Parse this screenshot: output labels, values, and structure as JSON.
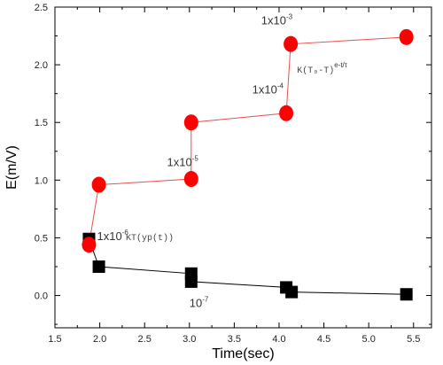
{
  "chart_data": {
    "type": "scatter",
    "xlabel": "Time(sec)",
    "ylabel": "E(m/V)",
    "xlim": [
      1.5,
      5.7
    ],
    "ylim": [
      -0.28,
      2.5
    ],
    "x_ticks": [
      1.5,
      2.0,
      2.5,
      3.0,
      3.5,
      4.0,
      4.5,
      5.0,
      5.5
    ],
    "y_ticks": [
      0.0,
      0.5,
      1.0,
      1.5,
      2.0,
      2.5
    ],
    "x_tick_labels": [
      "1.5",
      "2.0",
      "2.5",
      "3.0",
      "3.5",
      "4.0",
      "4.5",
      "5.0",
      "5.5"
    ],
    "y_tick_labels": [
      "0.0",
      "0.5",
      "1.0",
      "1.5",
      "2.0",
      "2.5"
    ],
    "grid": false,
    "series": [
      {
        "marker": "circle",
        "color": "#ff0000",
        "line_color": "#e85050",
        "points": [
          {
            "x": 1.88,
            "y": 0.44
          },
          {
            "x": 1.99,
            "y": 0.96
          },
          {
            "x": 3.02,
            "y": 1.01
          },
          {
            "x": 3.02,
            "y": 1.5
          },
          {
            "x": 4.08,
            "y": 1.58
          },
          {
            "x": 4.13,
            "y": 2.18
          },
          {
            "x": 5.42,
            "y": 2.24
          }
        ]
      },
      {
        "marker": "square",
        "color": "#000000",
        "line_color": "#000000",
        "points": [
          {
            "x": 1.88,
            "y": 0.49
          },
          {
            "x": 1.99,
            "y": 0.25
          },
          {
            "x": 3.02,
            "y": 0.19
          },
          {
            "x": 3.02,
            "y": 0.12
          },
          {
            "x": 4.08,
            "y": 0.07
          },
          {
            "x": 4.14,
            "y": 0.03
          },
          {
            "x": 5.42,
            "y": 0.01
          }
        ]
      }
    ],
    "annotations": [
      {
        "base": "1x10",
        "sup": "-3",
        "x": 3.8,
        "y": 2.35
      },
      {
        "base": "1x10",
        "sup": "-4",
        "x": 3.7,
        "y": 1.75
      },
      {
        "base": "1x10",
        "sup": "-5",
        "x": 2.75,
        "y": 1.12
      },
      {
        "base": "1x10",
        "sup": "-6",
        "x": 1.97,
        "y": 0.48
      },
      {
        "base": "10",
        "sup": "-7",
        "x": 3.0,
        "y": -0.1
      },
      {
        "text": "K(T₀-T)",
        "sup": "e-t/τ",
        "x": 4.2,
        "y": 1.93,
        "style": "small"
      },
      {
        "text": "KT(yp(t))",
        "x": 2.29,
        "y": 0.48,
        "style": "small"
      }
    ]
  }
}
